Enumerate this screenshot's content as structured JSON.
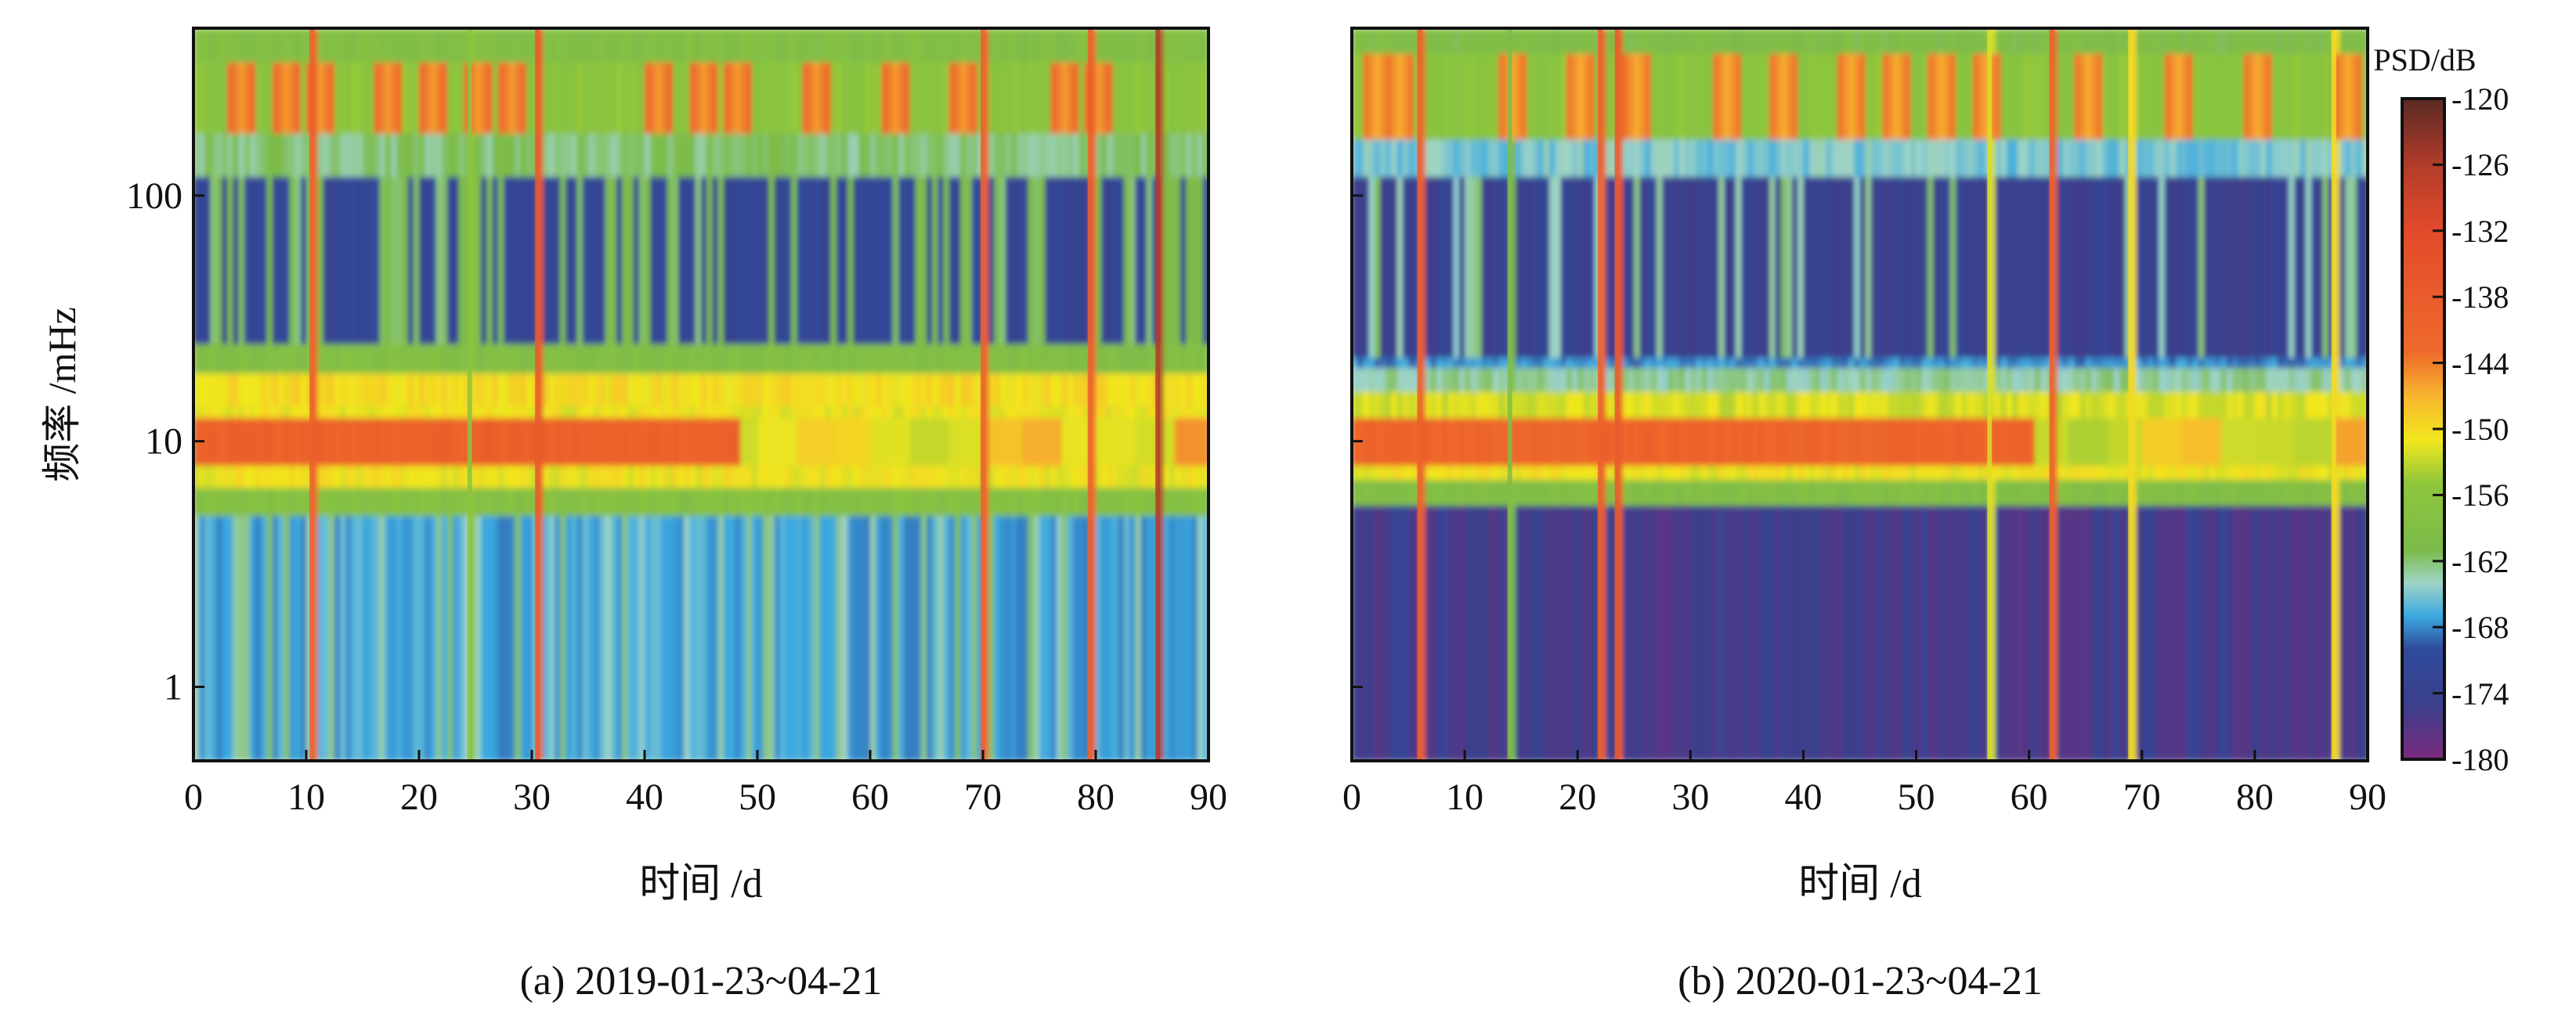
{
  "colorbar": {
    "label": "PSD/dB",
    "ticks": [
      "-120",
      "-126",
      "-132",
      "-138",
      "-144",
      "-150",
      "-156",
      "-162",
      "-168",
      "-174",
      "-180"
    ],
    "range": [
      -180,
      -120
    ],
    "stops": [
      [
        -180,
        "#7a2a7e"
      ],
      [
        -175,
        "#3b3f8c"
      ],
      [
        -170,
        "#2f4b9c"
      ],
      [
        -167,
        "#3aa8e0"
      ],
      [
        -164,
        "#9fd4c6"
      ],
      [
        -161,
        "#7cbb4a"
      ],
      [
        -155,
        "#8ec63c"
      ],
      [
        -151,
        "#f2e71e"
      ],
      [
        -147,
        "#f7b52e"
      ],
      [
        -143,
        "#ee6a2c"
      ],
      [
        -132,
        "#e34a2b"
      ],
      [
        -126,
        "#b23c2a"
      ],
      [
        -120,
        "#5a2a25"
      ]
    ]
  },
  "chart_data": [
    {
      "type": "heatmap",
      "caption": "(a) 2019-01-23~04-21",
      "xlabel": "时间 /d",
      "ylabel": "频率 /mHz",
      "xlim": [
        0,
        90
      ],
      "ylim": [
        0.5,
        480
      ],
      "yscale": "log",
      "xticks": [
        "0",
        "10",
        "20",
        "30",
        "40",
        "50",
        "60",
        "70",
        "80",
        "90"
      ],
      "yticks": [
        {
          "value": 1,
          "label": "1"
        },
        {
          "value": 10,
          "label": "10"
        },
        {
          "value": 100,
          "label": "100"
        }
      ],
      "bands": [
        {
          "f": [
            0.5,
            5
          ],
          "psd": -167,
          "gap_psd": -163,
          "gap_rate": 0.25
        },
        {
          "f": [
            5,
            6.5
          ],
          "psd": -158
        },
        {
          "f": [
            6.5,
            8
          ],
          "psd": -151
        },
        {
          "f": [
            8,
            12.5
          ],
          "psd": -140,
          "fade_after_day": 48,
          "fade_psd": -149
        },
        {
          "f": [
            12.5,
            14
          ],
          "psd": -151
        },
        {
          "f": [
            14,
            19
          ],
          "psd": -150
        },
        {
          "f": [
            19,
            25
          ],
          "psd": -159
        },
        {
          "f": [
            25,
            120
          ],
          "psd": -172,
          "gap_psd": -161,
          "gap_rate": 0.3
        },
        {
          "f": [
            120,
            180
          ],
          "psd": -162
        },
        {
          "f": [
            180,
            350
          ],
          "psd": -156,
          "blob_psd": -142
        },
        {
          "f": [
            350,
            480
          ],
          "psd": -159
        }
      ],
      "blob_days": [
        4,
        8,
        11,
        17,
        21,
        25,
        28,
        41,
        45,
        48,
        55,
        62,
        68,
        77,
        80
      ],
      "spikes": [
        {
          "day": 10.5,
          "psd": -140
        },
        {
          "day": 24.5,
          "psd": -156
        },
        {
          "day": 30.5,
          "psd": -138
        },
        {
          "day": 70,
          "psd": -140
        },
        {
          "day": 79.5,
          "psd": -140
        },
        {
          "day": 85.5,
          "psd": -126
        }
      ]
    },
    {
      "type": "heatmap",
      "caption": "(b) 2020-01-23~04-21",
      "xlabel": "时间 /d",
      "ylabel": "",
      "xlim": [
        0,
        90
      ],
      "ylim": [
        0.5,
        480
      ],
      "yscale": "log",
      "xticks": [
        "0",
        "10",
        "20",
        "30",
        "40",
        "50",
        "60",
        "70",
        "80",
        "90"
      ],
      "yticks": [
        {
          "value": 1,
          "label": ""
        },
        {
          "value": 10,
          "label": ""
        },
        {
          "value": 100,
          "label": ""
        }
      ],
      "bands": [
        {
          "f": [
            0.5,
            5.5
          ],
          "psd": -176,
          "gap_psd": -173,
          "gap_rate": 0.2
        },
        {
          "f": [
            5.5,
            7
          ],
          "psd": -159
        },
        {
          "f": [
            7,
            8
          ],
          "psd": -151
        },
        {
          "f": [
            8,
            12.5
          ],
          "psd": -141,
          "fade_after_day": 60,
          "fade_psd": -150
        },
        {
          "f": [
            12.5,
            16
          ],
          "psd": -152
        },
        {
          "f": [
            16,
            20
          ],
          "psd": -163
        },
        {
          "f": [
            20,
            22
          ],
          "psd": -168
        },
        {
          "f": [
            22,
            120
          ],
          "psd": -174,
          "gap_psd": -163,
          "gap_rate": 0.18
        },
        {
          "f": [
            120,
            170
          ],
          "psd": -165
        },
        {
          "f": [
            170,
            380
          ],
          "psd": -156,
          "blob_psd": -143
        },
        {
          "f": [
            380,
            480
          ],
          "psd": -160
        }
      ],
      "blob_days": [
        2,
        4,
        14,
        20,
        25,
        33,
        38,
        44,
        48,
        52,
        56,
        65,
        73,
        80,
        88
      ],
      "spikes": [
        {
          "day": 6,
          "psd": -140
        },
        {
          "day": 14,
          "psd": -160
        },
        {
          "day": 22,
          "psd": -140
        },
        {
          "day": 23.5,
          "psd": -138
        },
        {
          "day": 56.5,
          "psd": -152
        },
        {
          "day": 62,
          "psd": -140
        },
        {
          "day": 69,
          "psd": -150
        },
        {
          "day": 87,
          "psd": -150
        }
      ]
    }
  ]
}
